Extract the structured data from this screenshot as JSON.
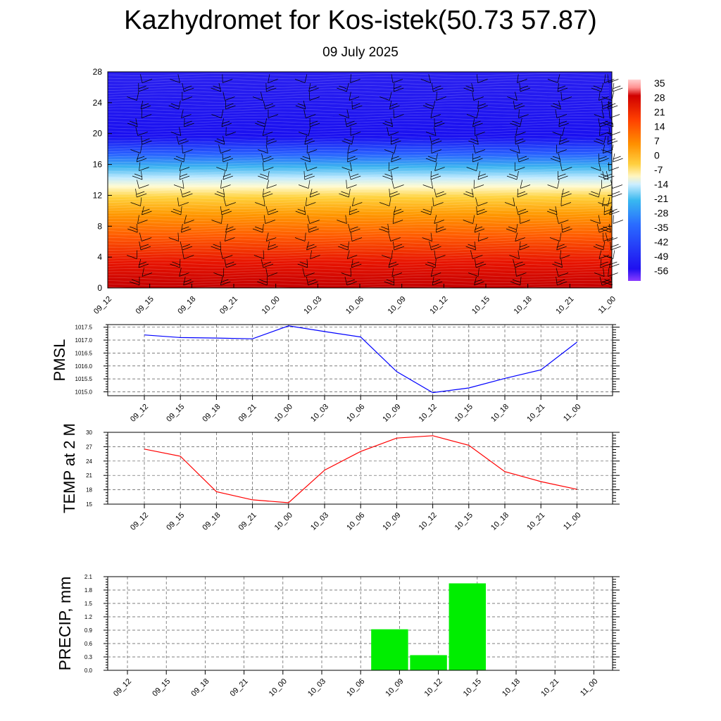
{
  "title": "Kazhydromet for Kos-istek(50.73 57.87)",
  "subtitle": "09 July 2025",
  "chart_data": [
    {
      "type": "heatmap",
      "y_ticks": [
        0,
        4,
        8,
        12,
        16,
        20,
        24,
        28
      ],
      "ylim": [
        0,
        28
      ],
      "x_ticks": [
        "09_12",
        "09_15",
        "09_18",
        "09_21",
        "10_00",
        "10_03",
        "10_06",
        "10_09",
        "10_12",
        "10_15",
        "10_18",
        "10_21",
        "11_00"
      ],
      "colorbar_labels": [
        35,
        28,
        21,
        14,
        7,
        0,
        -7,
        -14,
        -21,
        -28,
        -35,
        -42,
        -49,
        -56
      ],
      "overlay": "wind barbs",
      "grid": false
    },
    {
      "type": "line",
      "ylabel": "PMSL",
      "x": [
        "09_12",
        "09_15",
        "09_18",
        "09_21",
        "10_00",
        "10_03",
        "10_06",
        "10_09",
        "10_12",
        "10_15",
        "10_18",
        "10_21",
        "11_00"
      ],
      "values": [
        1017.2,
        1017.1,
        1017.08,
        1017.05,
        1017.55,
        1017.33,
        1017.12,
        1015.78,
        1014.97,
        1015.15,
        1015.52,
        1015.85,
        1016.92
      ],
      "ylim": [
        1014.85,
        1017.6
      ],
      "y_ticks": [
        "1015.0",
        "1015.5",
        "1016.0",
        "1016.5",
        "1017.0",
        "1017.5"
      ],
      "line_color": "#0000ff",
      "grid": true
    },
    {
      "type": "line",
      "ylabel": "TEMP at 2 M",
      "x": [
        "09_12",
        "09_15",
        "09_18",
        "09_21",
        "10_00",
        "10_03",
        "10_06",
        "10_09",
        "10_12",
        "10_15",
        "10_18",
        "10_21",
        "11_00"
      ],
      "values": [
        26.5,
        25.0,
        17.6,
        15.9,
        15.3,
        22.1,
        26.0,
        28.8,
        29.3,
        27.3,
        21.8,
        19.7,
        18.1
      ],
      "ylim": [
        15,
        30
      ],
      "y_ticks": [
        "15",
        "18",
        "21",
        "24",
        "27",
        "30"
      ],
      "line_color": "#ff0000",
      "grid": true
    },
    {
      "type": "bar",
      "ylabel": "PRECIP, mm",
      "categories": [
        "09_12",
        "09_15",
        "09_18",
        "09_21",
        "10_00",
        "10_03",
        "10_06",
        "10_09",
        "10_12",
        "10_15",
        "10_18",
        "10_21",
        "11_00"
      ],
      "values": [
        0,
        0,
        0,
        0,
        0,
        0,
        0,
        0.92,
        0.34,
        1.95,
        0,
        0,
        0
      ],
      "ylim": [
        0,
        2.1
      ],
      "y_ticks": [
        "0.0",
        "0.3",
        "0.6",
        "0.9",
        "1.2",
        "1.5",
        "1.8",
        "2.1"
      ],
      "bar_color": "#00ee00",
      "grid": true
    }
  ]
}
